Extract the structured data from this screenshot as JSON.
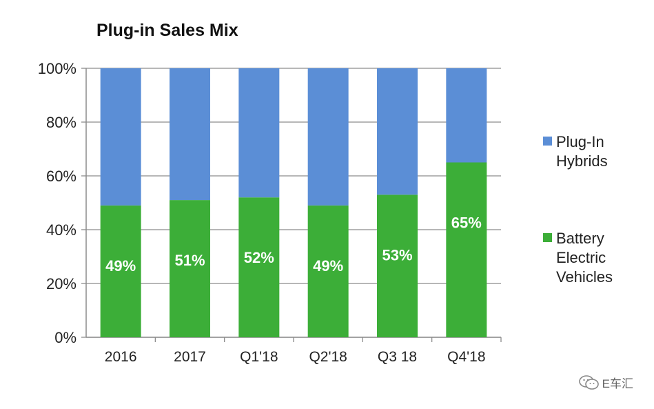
{
  "chart_data": {
    "type": "bar",
    "stacked": true,
    "title": "Plug-in Sales Mix",
    "xlabel": "",
    "ylabel": "",
    "categories": [
      "2016",
      "2017",
      "Q1'18",
      "Q2'18",
      "Q3 18",
      "Q4'18"
    ],
    "ylim": [
      0,
      100
    ],
    "yticks": [
      "0%",
      "20%",
      "40%",
      "60%",
      "80%",
      "100%"
    ],
    "series": [
      {
        "name": "Battery Electric Vehicles",
        "color": "#3cae38",
        "values": [
          49,
          51,
          52,
          49,
          53,
          65
        ],
        "labels": [
          "49%",
          "51%",
          "52%",
          "49%",
          "53%",
          "65%"
        ]
      },
      {
        "name": "Plug-In Hybrids",
        "color": "#5b8ed6",
        "values": [
          51,
          49,
          48,
          51,
          47,
          35
        ]
      }
    ],
    "legend": {
      "placement": "right",
      "items": [
        {
          "label": "Plug-In Hybrids",
          "color": "#5b8ed6"
        },
        {
          "label": "Battery Electric Vehicles",
          "color": "#3cae38"
        }
      ]
    },
    "grid": true
  },
  "watermark": {
    "text": "E车汇",
    "icon": "wechat-icon"
  }
}
